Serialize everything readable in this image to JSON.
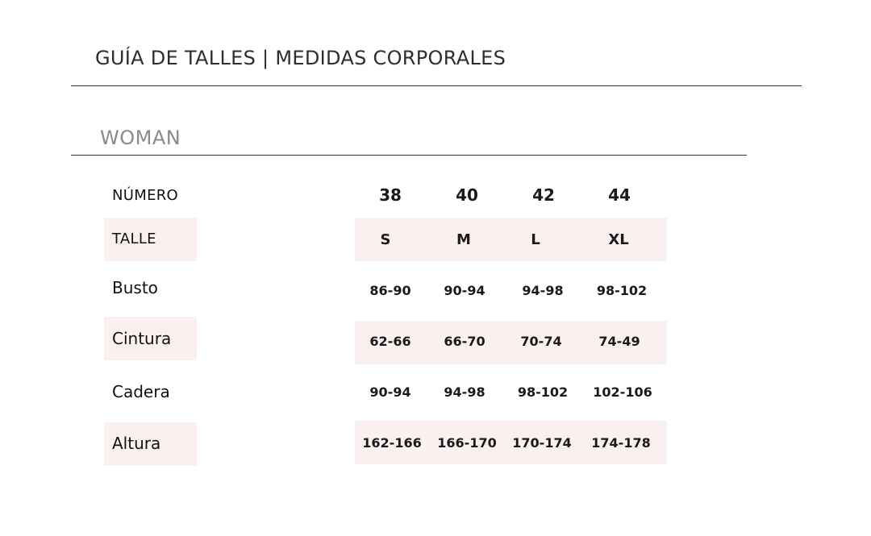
{
  "header": {
    "title": "GUÍA DE TALLES | MEDIDAS CORPORALES"
  },
  "section": {
    "label": "WOMAN"
  },
  "table": {
    "number_label": "NÚMERO",
    "numbers": [
      "38",
      "40",
      "42",
      "44"
    ],
    "rows": [
      {
        "label": "TALLE",
        "values": [
          "S",
          "M",
          "L",
          "XL"
        ]
      },
      {
        "label": "Busto",
        "values": [
          "86-90",
          "90-94",
          "94-98",
          "98-102"
        ]
      },
      {
        "label": "Cintura",
        "values": [
          "62-66",
          "66-70",
          "70-74",
          "74-49"
        ]
      },
      {
        "label": "Cadera",
        "values": [
          "90-94",
          "94-98",
          "98-102",
          "102-106"
        ]
      },
      {
        "label": "Altura",
        "values": [
          "162-166",
          "166-170",
          "170-174",
          "174-178"
        ]
      }
    ]
  },
  "colors": {
    "row_highlight": "#fbf0f0",
    "title_text": "#2e2e2e",
    "section_text": "#8a8a8a"
  }
}
